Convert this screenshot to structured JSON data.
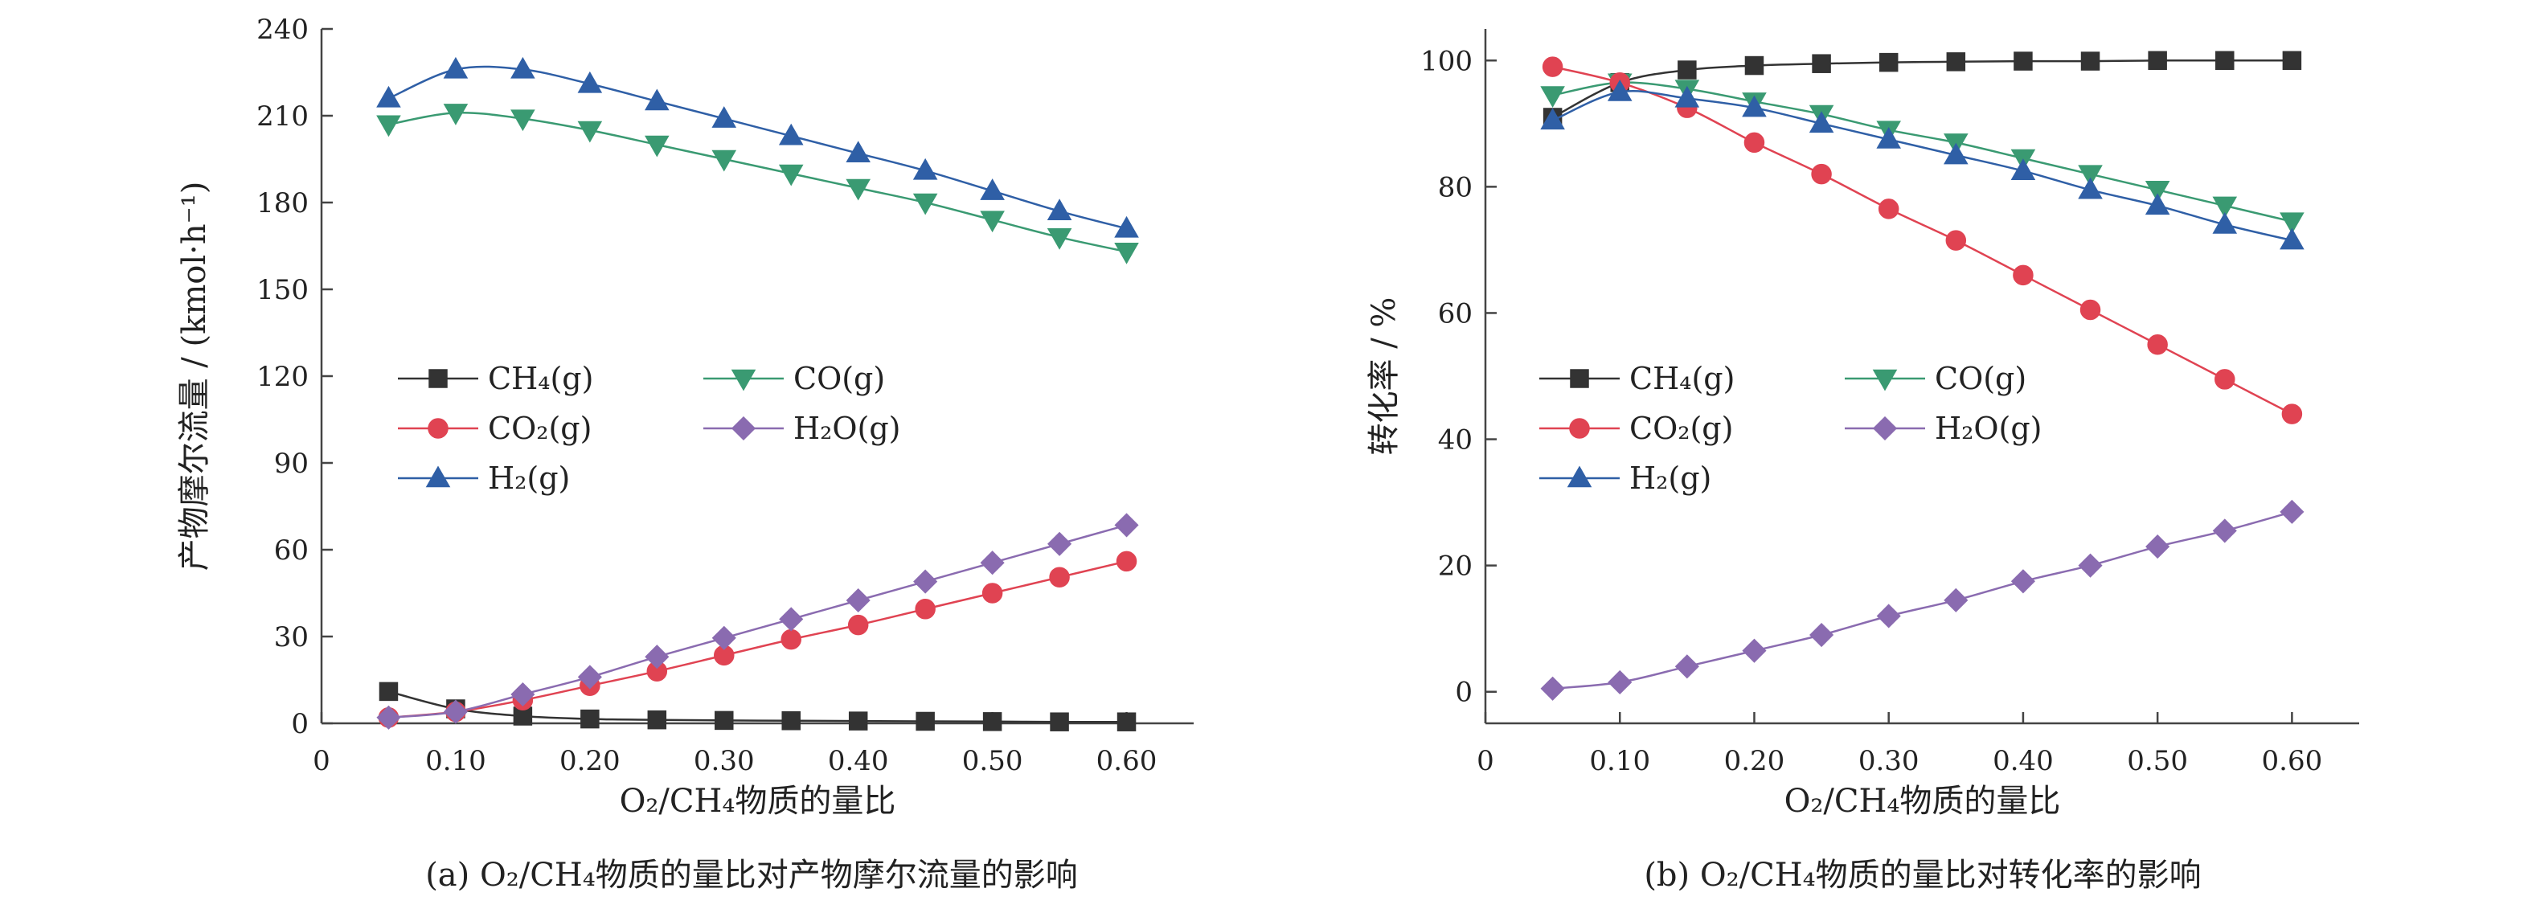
{
  "colors": {
    "CH4": "#333333",
    "CO": "#3a9a72",
    "CO2": "#e04352",
    "H2O": "#8a6bb0",
    "H2": "#2f5fa6",
    "axis": "#444444"
  },
  "chart_data": [
    {
      "type": "line",
      "caption": "(a) O₂/CH₄物质的量比对产物摩尔流量的影响",
      "xlabel": "O₂/CH₄物质的量比",
      "ylabel": "产物摩尔流量 / (kmol·h⁻¹)",
      "xlim": [
        0,
        0.65
      ],
      "ylim": [
        0,
        240
      ],
      "xticks": [
        0,
        0.1,
        0.2,
        0.3,
        0.4,
        0.5,
        0.6
      ],
      "xticklabels": [
        "0",
        "0.10",
        "0.20",
        "0.30",
        "0.40",
        "0.50",
        "0.60"
      ],
      "yticks": [
        0,
        30,
        60,
        90,
        120,
        150,
        180,
        210,
        240
      ],
      "yticklabels": [
        "0",
        "30",
        "60",
        "90",
        "120",
        "150",
        "180",
        "210",
        "240"
      ],
      "legend_position": "center-left",
      "x": [
        0.05,
        0.1,
        0.15,
        0.2,
        0.25,
        0.3,
        0.35,
        0.4,
        0.45,
        0.5,
        0.55,
        0.6
      ],
      "series": [
        {
          "name": "CH₄(g)",
          "key": "CH4",
          "marker": "square",
          "values": [
            11,
            5,
            2.5,
            1.5,
            1.2,
            1.0,
            0.9,
            0.8,
            0.7,
            0.6,
            0.5,
            0.5
          ]
        },
        {
          "name": "CO(g)",
          "key": "CO",
          "marker": "triangle-down",
          "values": [
            207,
            211,
            209,
            205,
            200,
            195,
            190,
            185,
            180,
            174,
            168,
            163
          ]
        },
        {
          "name": "CO₂(g)",
          "key": "CO2",
          "marker": "circle",
          "values": [
            2,
            4,
            8,
            13,
            18,
            23.5,
            29,
            34,
            39.5,
            45,
            50.5,
            56
          ]
        },
        {
          "name": "H₂O(g)",
          "key": "H2O",
          "marker": "diamond",
          "values": [
            2,
            4,
            10,
            16,
            23,
            29.5,
            36,
            42.5,
            49,
            55.5,
            62,
            68.5
          ]
        },
        {
          "name": "H₂(g)",
          "key": "H2",
          "marker": "triangle-up",
          "values": [
            216,
            226,
            226,
            221,
            215,
            209,
            203,
            197,
            191,
            184,
            177,
            171
          ]
        }
      ]
    },
    {
      "type": "line",
      "caption": "(b) O₂/CH₄物质的量比对转化率的影响",
      "xlabel": "O₂/CH₄物质的量比",
      "ylabel": "转化率 / %",
      "xlim": [
        0,
        0.65
      ],
      "ylim": [
        -5,
        105
      ],
      "xticks": [
        0,
        0.1,
        0.2,
        0.3,
        0.4,
        0.5,
        0.6
      ],
      "xticklabels": [
        "0",
        "0.10",
        "0.20",
        "0.30",
        "0.40",
        "0.50",
        "0.60"
      ],
      "yticks": [
        0,
        20,
        40,
        60,
        80,
        100
      ],
      "yticklabels": [
        "0",
        "20",
        "40",
        "60",
        "80",
        "100"
      ],
      "legend_position": "center-left",
      "x": [
        0.05,
        0.1,
        0.15,
        0.2,
        0.25,
        0.3,
        0.35,
        0.4,
        0.45,
        0.5,
        0.55,
        0.6
      ],
      "series": [
        {
          "name": "CH₄(g)",
          "key": "CH4",
          "marker": "square",
          "values": [
            91,
            96.5,
            98.5,
            99.2,
            99.5,
            99.7,
            99.8,
            99.9,
            99.9,
            100,
            100,
            100
          ]
        },
        {
          "name": "CO(g)",
          "key": "CO",
          "marker": "triangle-down",
          "values": [
            94.5,
            96.5,
            95.5,
            93.5,
            91.5,
            89,
            87,
            84.5,
            82,
            79.5,
            77,
            74.5
          ]
        },
        {
          "name": "CO₂(g)",
          "key": "CO2",
          "marker": "circle",
          "values": [
            99,
            96.5,
            92.5,
            87,
            82,
            76.5,
            71.5,
            66,
            60.5,
            55,
            49.5,
            44
          ]
        },
        {
          "name": "H₂O(g)",
          "key": "H2O",
          "marker": "diamond",
          "values": [
            0.5,
            1.5,
            4,
            6.5,
            9,
            12,
            14.5,
            17.5,
            20,
            23,
            25.5,
            28.5
          ]
        },
        {
          "name": "H₂(g)",
          "key": "H2",
          "marker": "triangle-up",
          "values": [
            90.5,
            95,
            94,
            92.5,
            90,
            87.5,
            85,
            82.5,
            79.5,
            77,
            74,
            71.5
          ]
        }
      ]
    }
  ]
}
